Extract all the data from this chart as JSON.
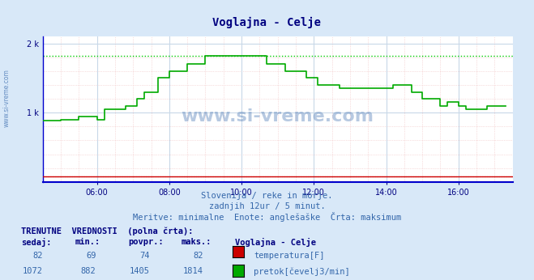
{
  "title": "Voglajna - Celje",
  "bg_color": "#d8e8f8",
  "plot_bg_color": "#ffffff",
  "grid_color_major": "#c8d8e8",
  "grid_color_minor": "#e8f0f8",
  "line_color": "#00aa00",
  "dotted_line_color": "#00cc00",
  "x_axis_color": "#0000cc",
  "bottom_line_color": "#cc0000",
  "title_color": "#000080",
  "watermark": "www.si-vreme.com",
  "subtitle1": "Slovenija / reke in morje.",
  "subtitle2": "zadnjih 12ur / 5 minut.",
  "subtitle3": "Meritve: minimalne  Enote: anglešaške  Črta: maksimum",
  "xlabel": "",
  "ylabel_left": "",
  "xlim_hours": [
    4.5,
    17.5
  ],
  "ylim": [
    0,
    2100
  ],
  "yticks": [
    0,
    1000,
    2000
  ],
  "ytick_labels": [
    "",
    "1 k",
    "2 k"
  ],
  "xtick_hours": [
    6,
    8,
    10,
    12,
    14,
    16
  ],
  "xtick_labels": [
    "06:00",
    "08:00",
    "10:00",
    "12:00",
    "14:00",
    "16:00"
  ],
  "hline_dotted_y": 1814,
  "hline_red_y": 82,
  "table_header": "TRENUTNE  VREDNOSTI  (polna črta):",
  "col_headers": [
    "sedaj:",
    "min.:",
    "povpr.:",
    "maks.:",
    "Voglajna - Celje"
  ],
  "row1": [
    "82",
    "69",
    "74",
    "82",
    "temperatura[F]"
  ],
  "row2": [
    "1072",
    "882",
    "1405",
    "1814",
    "pretok[čevelj3/min]"
  ],
  "color_temp": "#cc0000",
  "color_flow": "#00aa00",
  "flow_data_x": [
    4.5,
    4.75,
    5.0,
    5.25,
    5.5,
    5.75,
    6.0,
    6.1,
    6.2,
    6.5,
    6.8,
    7.0,
    7.1,
    7.2,
    7.3,
    7.5,
    7.7,
    7.8,
    8.0,
    8.2,
    8.5,
    8.8,
    9.0,
    9.2,
    9.5,
    9.8,
    10.0,
    10.2,
    10.5,
    10.7,
    11.0,
    11.2,
    11.5,
    11.8,
    12.0,
    12.1,
    12.2,
    12.5,
    12.7,
    12.8,
    13.0,
    13.2,
    13.5,
    13.8,
    14.0,
    14.2,
    14.5,
    14.7,
    14.8,
    15.0,
    15.2,
    15.5,
    15.7,
    15.8,
    16.0,
    16.2,
    16.5,
    16.8,
    17.0,
    17.3
  ],
  "flow_data_y": [
    882,
    882,
    900,
    900,
    950,
    950,
    900,
    900,
    1050,
    1050,
    1100,
    1100,
    1200,
    1200,
    1300,
    1300,
    1500,
    1500,
    1600,
    1600,
    1700,
    1700,
    1814,
    1814,
    1814,
    1814,
    1814,
    1814,
    1814,
    1700,
    1700,
    1600,
    1600,
    1500,
    1500,
    1400,
    1400,
    1400,
    1350,
    1350,
    1350,
    1350,
    1350,
    1350,
    1350,
    1400,
    1400,
    1300,
    1300,
    1200,
    1200,
    1100,
    1150,
    1150,
    1100,
    1050,
    1050,
    1100,
    1100,
    1100
  ]
}
